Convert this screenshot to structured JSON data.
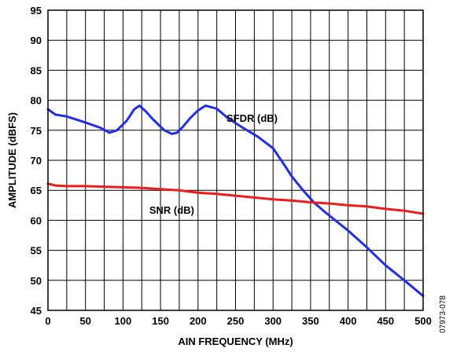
{
  "chart_data": {
    "type": "line",
    "title": "",
    "xlabel": "AIN FREQUENCY (MHz)",
    "ylabel": "AMPLITUDE (dBFS)",
    "xlim": [
      0,
      500
    ],
    "ylim": [
      45,
      95
    ],
    "xticks": [
      0,
      50,
      100,
      150,
      200,
      250,
      300,
      350,
      400,
      450,
      500
    ],
    "yticks": [
      45,
      50,
      55,
      60,
      65,
      70,
      75,
      80,
      85,
      90,
      95
    ],
    "grid": true,
    "minor_x_step": 25,
    "legend": "inline labels",
    "figure_id": "07973-078",
    "series": [
      {
        "name": "SFDR (dB)",
        "color": "#1f2fe8",
        "label_at": [
          272,
          76.4
        ],
        "x": [
          0,
          10,
          25,
          50,
          70,
          82,
          92,
          105,
          115,
          122,
          130,
          140,
          155,
          165,
          172,
          180,
          190,
          200,
          210,
          225,
          240,
          260,
          280,
          300,
          312,
          325,
          340,
          355,
          370,
          400,
          425,
          450,
          475,
          500
        ],
        "y": [
          78.5,
          77.6,
          77.3,
          76.3,
          75.4,
          74.6,
          75.0,
          76.6,
          78.5,
          79.1,
          78.2,
          76.8,
          75.0,
          74.4,
          74.6,
          75.6,
          77.1,
          78.3,
          79.1,
          78.6,
          77.0,
          75.4,
          73.9,
          72.0,
          69.8,
          67.3,
          65.0,
          62.9,
          61.3,
          58.3,
          55.5,
          52.5,
          50.0,
          47.4
        ]
      },
      {
        "name": "SNR (dB)",
        "color": "#ee1c1c",
        "label_at": [
          165,
          61.1
        ],
        "x": [
          0,
          10,
          25,
          50,
          75,
          100,
          125,
          150,
          175,
          200,
          225,
          250,
          275,
          300,
          325,
          350,
          375,
          400,
          425,
          450,
          475,
          500
        ],
        "y": [
          66.1,
          65.8,
          65.7,
          65.7,
          65.6,
          65.5,
          65.4,
          65.2,
          65.0,
          64.6,
          64.4,
          64.1,
          63.8,
          63.5,
          63.3,
          63.0,
          62.8,
          62.5,
          62.3,
          61.9,
          61.6,
          61.1
        ]
      }
    ]
  }
}
